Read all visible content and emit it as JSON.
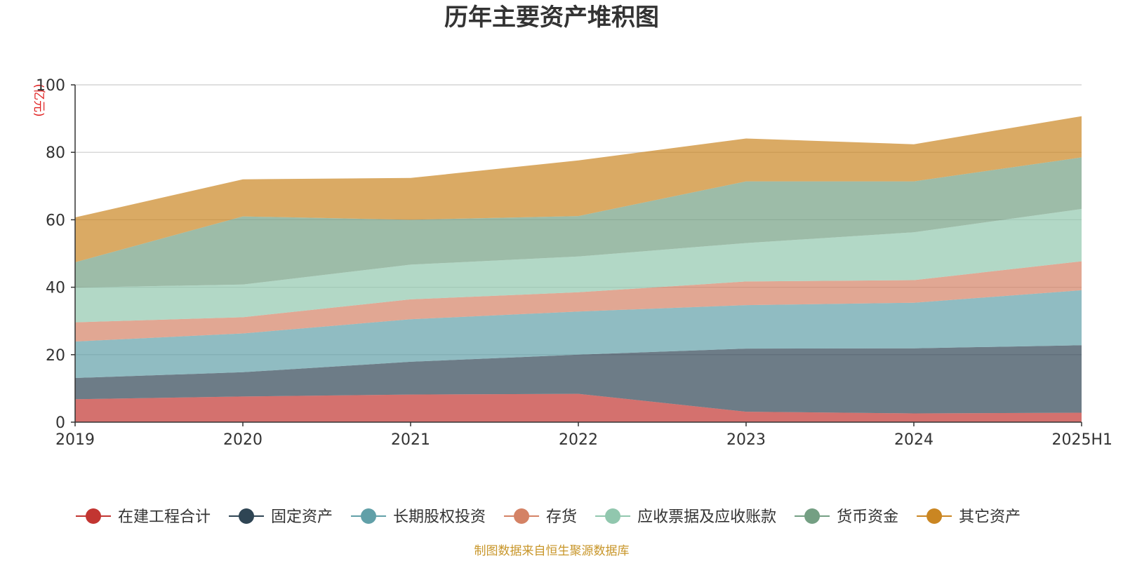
{
  "chart_data": {
    "type": "area",
    "stacked": true,
    "title": "历年主要资产堆积图",
    "y_unit": "(亿元)",
    "categories": [
      "2019",
      "2020",
      "2021",
      "2022",
      "2023",
      "2024",
      "2025H1"
    ],
    "ylim": [
      0,
      100
    ],
    "yticks": [
      "0",
      "20",
      "40",
      "60",
      "80",
      "100"
    ],
    "grid": true,
    "legend_position": "bottom",
    "series": [
      {
        "name": "在建工程合计",
        "color": "#c23531",
        "values": [
          6.8,
          7.6,
          8.2,
          8.4,
          3.1,
          2.6,
          2.8
        ]
      },
      {
        "name": "固定资产",
        "color": "#2f4554",
        "values": [
          6.3,
          7.2,
          9.7,
          11.6,
          18.7,
          19.3,
          20.0
        ]
      },
      {
        "name": "长期股权投资",
        "color": "#61a0a8",
        "values": [
          10.8,
          11.5,
          12.6,
          12.8,
          12.9,
          13.5,
          16.3
        ]
      },
      {
        "name": "存货",
        "color": "#d48265",
        "values": [
          5.7,
          4.8,
          5.9,
          5.7,
          7.0,
          6.7,
          8.6
        ]
      },
      {
        "name": "应收票据及应收账款",
        "color": "#91c7ae",
        "values": [
          10.3,
          9.7,
          10.3,
          10.6,
          11.4,
          14.2,
          15.5
        ]
      },
      {
        "name": "货币资金",
        "color": "#749f83",
        "values": [
          7.5,
          20.2,
          13.3,
          12.0,
          18.3,
          15.1,
          15.3
        ]
      },
      {
        "name": "其它资产",
        "color": "#ca8622",
        "values": [
          13.3,
          11.0,
          12.4,
          16.5,
          12.7,
          11.0,
          12.2
        ]
      }
    ],
    "source_note": "制图数据来自恒生聚源数据库"
  }
}
